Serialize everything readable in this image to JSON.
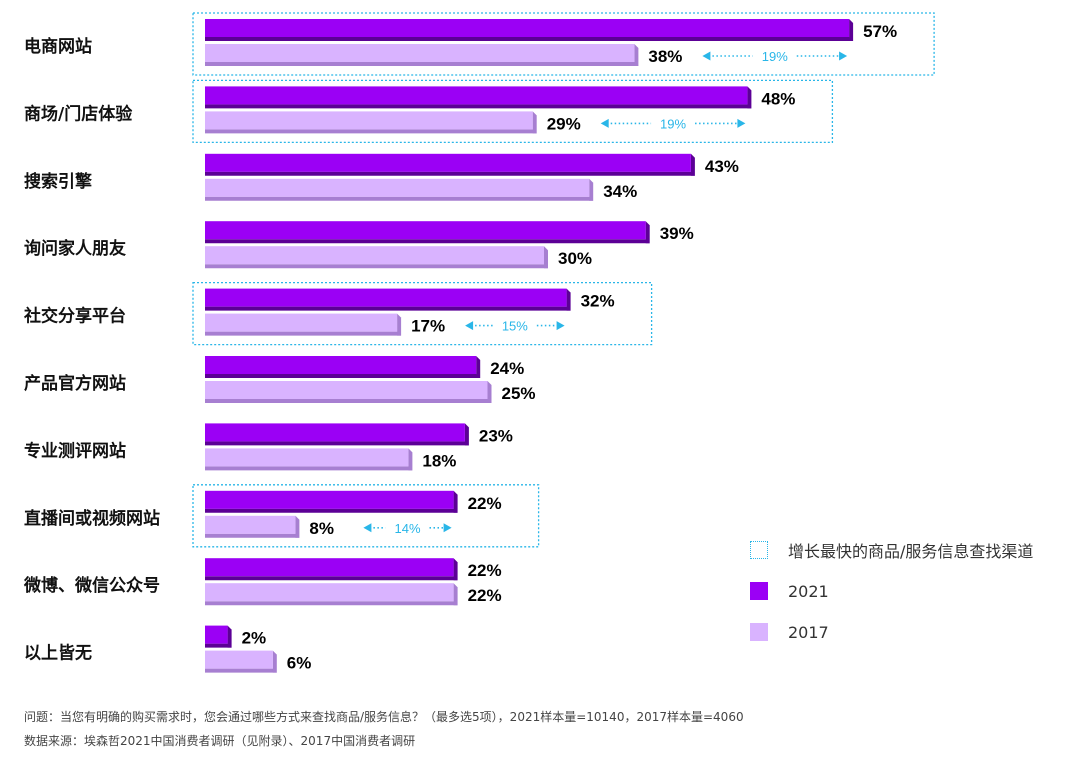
{
  "chart_data": {
    "type": "bar",
    "orientation": "horizontal",
    "categories": [
      "电商网站",
      "商场/门店体验",
      "搜索引擎",
      "询问家人朋友",
      "社交分享平台",
      "产品官方网站",
      "专业测评网站",
      "直播间或视频网站",
      "微博、微信公众号",
      "以上皆无"
    ],
    "series": [
      {
        "name": "2021",
        "values": [
          57,
          48,
          43,
          39,
          32,
          24,
          23,
          22,
          22,
          2
        ],
        "color": "#9b00f5"
      },
      {
        "name": "2017",
        "values": [
          38,
          29,
          34,
          30,
          17,
          25,
          18,
          8,
          22,
          6
        ],
        "color": "#d9b3ff"
      }
    ],
    "value_labels_2021": [
      "57%",
      "48%",
      "43%",
      "39%",
      "32%",
      "24%",
      "23%",
      "22%",
      "22%",
      "2%"
    ],
    "value_labels_2017": [
      "38%",
      "29%",
      "34%",
      "30%",
      "17%",
      "25%",
      "18%",
      "8%",
      "22%",
      "6%"
    ],
    "highlights": [
      {
        "category": "电商网站",
        "gap": "19%"
      },
      {
        "category": "商场/门店体验",
        "gap": "19%"
      },
      {
        "category": "社交分享平台",
        "gap": "15%"
      },
      {
        "category": "直播间或视频网站",
        "gap": "14%"
      }
    ],
    "unit": "%",
    "grid": false,
    "legend_position": "bottom-right"
  },
  "legend": {
    "highlight_label": "增长最快的商品/服务信息查找渠道",
    "series_2021_label": "2021",
    "series_2017_label": "2017"
  },
  "colors": {
    "bar_2021": "#9b00f5",
    "bar_2021_dark": "#5c0096",
    "bar_2017": "#d9b3ff",
    "bar_2017_dark": "#a77fd1",
    "highlight_border": "#29b6e8",
    "gap_arrow": "#29b6e8"
  },
  "footnotes": {
    "question": "问题：当您有明确的购买需求时，您会通过哪些方式来查找商品/服务信息？（最多选5项），2021样本量=10140，2017样本量=4060",
    "source": "数据来源：埃森哲2021中国消费者调研（见附录）、2017中国消费者调研"
  }
}
